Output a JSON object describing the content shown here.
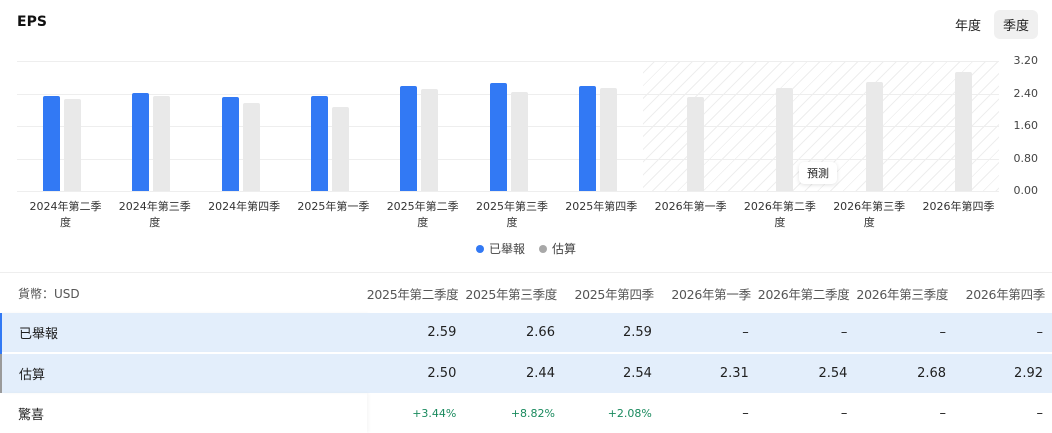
{
  "header": {
    "title": "EPS",
    "toggle": [
      {
        "label": "年度",
        "active": false
      },
      {
        "label": "季度",
        "active": true
      }
    ]
  },
  "colors": {
    "actual": "#3279f4",
    "estimate": "#e9e9e9",
    "surprise_positive": "#1a8a5e"
  },
  "chart_data": {
    "type": "bar",
    "title": "EPS",
    "categories": [
      "2024年第二季度",
      "2024年第三季度",
      "2024年第四季",
      "2025年第一季",
      "2025年第二季度",
      "2025年第三季度",
      "2025年第四季",
      "2026年第一季",
      "2026年第二季度",
      "2026年第三季度",
      "2026年第四季"
    ],
    "x_labels_display": [
      [
        "2024年第二季",
        "度"
      ],
      [
        "2024年第三季",
        "度"
      ],
      [
        "2024年第四季"
      ],
      [
        "2025年第一季"
      ],
      [
        "2025年第二季",
        "度"
      ],
      [
        "2025年第三季",
        "度"
      ],
      [
        "2025年第四季"
      ],
      [
        "2026年第一季"
      ],
      [
        "2026年第二季",
        "度"
      ],
      [
        "2026年第三季",
        "度"
      ],
      [
        "2026年第四季"
      ]
    ],
    "series": [
      {
        "name": "已舉報",
        "values": [
          2.34,
          2.41,
          2.32,
          2.34,
          2.59,
          2.66,
          2.59,
          null,
          null,
          null,
          null
        ]
      },
      {
        "name": "估算",
        "values": [
          2.27,
          2.34,
          2.17,
          2.07,
          2.5,
          2.44,
          2.54,
          2.31,
          2.54,
          2.68,
          2.92
        ]
      }
    ],
    "yticks": [
      "3.20",
      "2.40",
      "1.60",
      "0.80",
      "0.00"
    ],
    "ylim": [
      0,
      3.2
    ],
    "grid": true,
    "legend_position": "bottom",
    "forecast_annotation": "預測",
    "forecast_start_index": 7,
    "xlabel": "",
    "ylabel": ""
  },
  "legend": [
    {
      "label": "已舉報"
    },
    {
      "label": "估算"
    }
  ],
  "table": {
    "currency_label": "貨幣：USD",
    "columns": [
      "2025年第二季度",
      "2025年第三季度",
      "2025年第四季",
      "2026年第一季",
      "2026年第二季度",
      "2026年第三季度",
      "2026年第四季"
    ],
    "rows": [
      {
        "label": "已舉報",
        "values": [
          "2.59",
          "2.66",
          "2.59",
          "–",
          "–",
          "–",
          "–"
        ]
      },
      {
        "label": "估算",
        "values": [
          "2.50",
          "2.44",
          "2.54",
          "2.31",
          "2.54",
          "2.68",
          "2.92"
        ]
      },
      {
        "label": "驚喜",
        "values": [
          "+3.44%",
          "+8.82%",
          "+2.08%",
          "–",
          "–",
          "–",
          "–"
        ]
      }
    ]
  }
}
